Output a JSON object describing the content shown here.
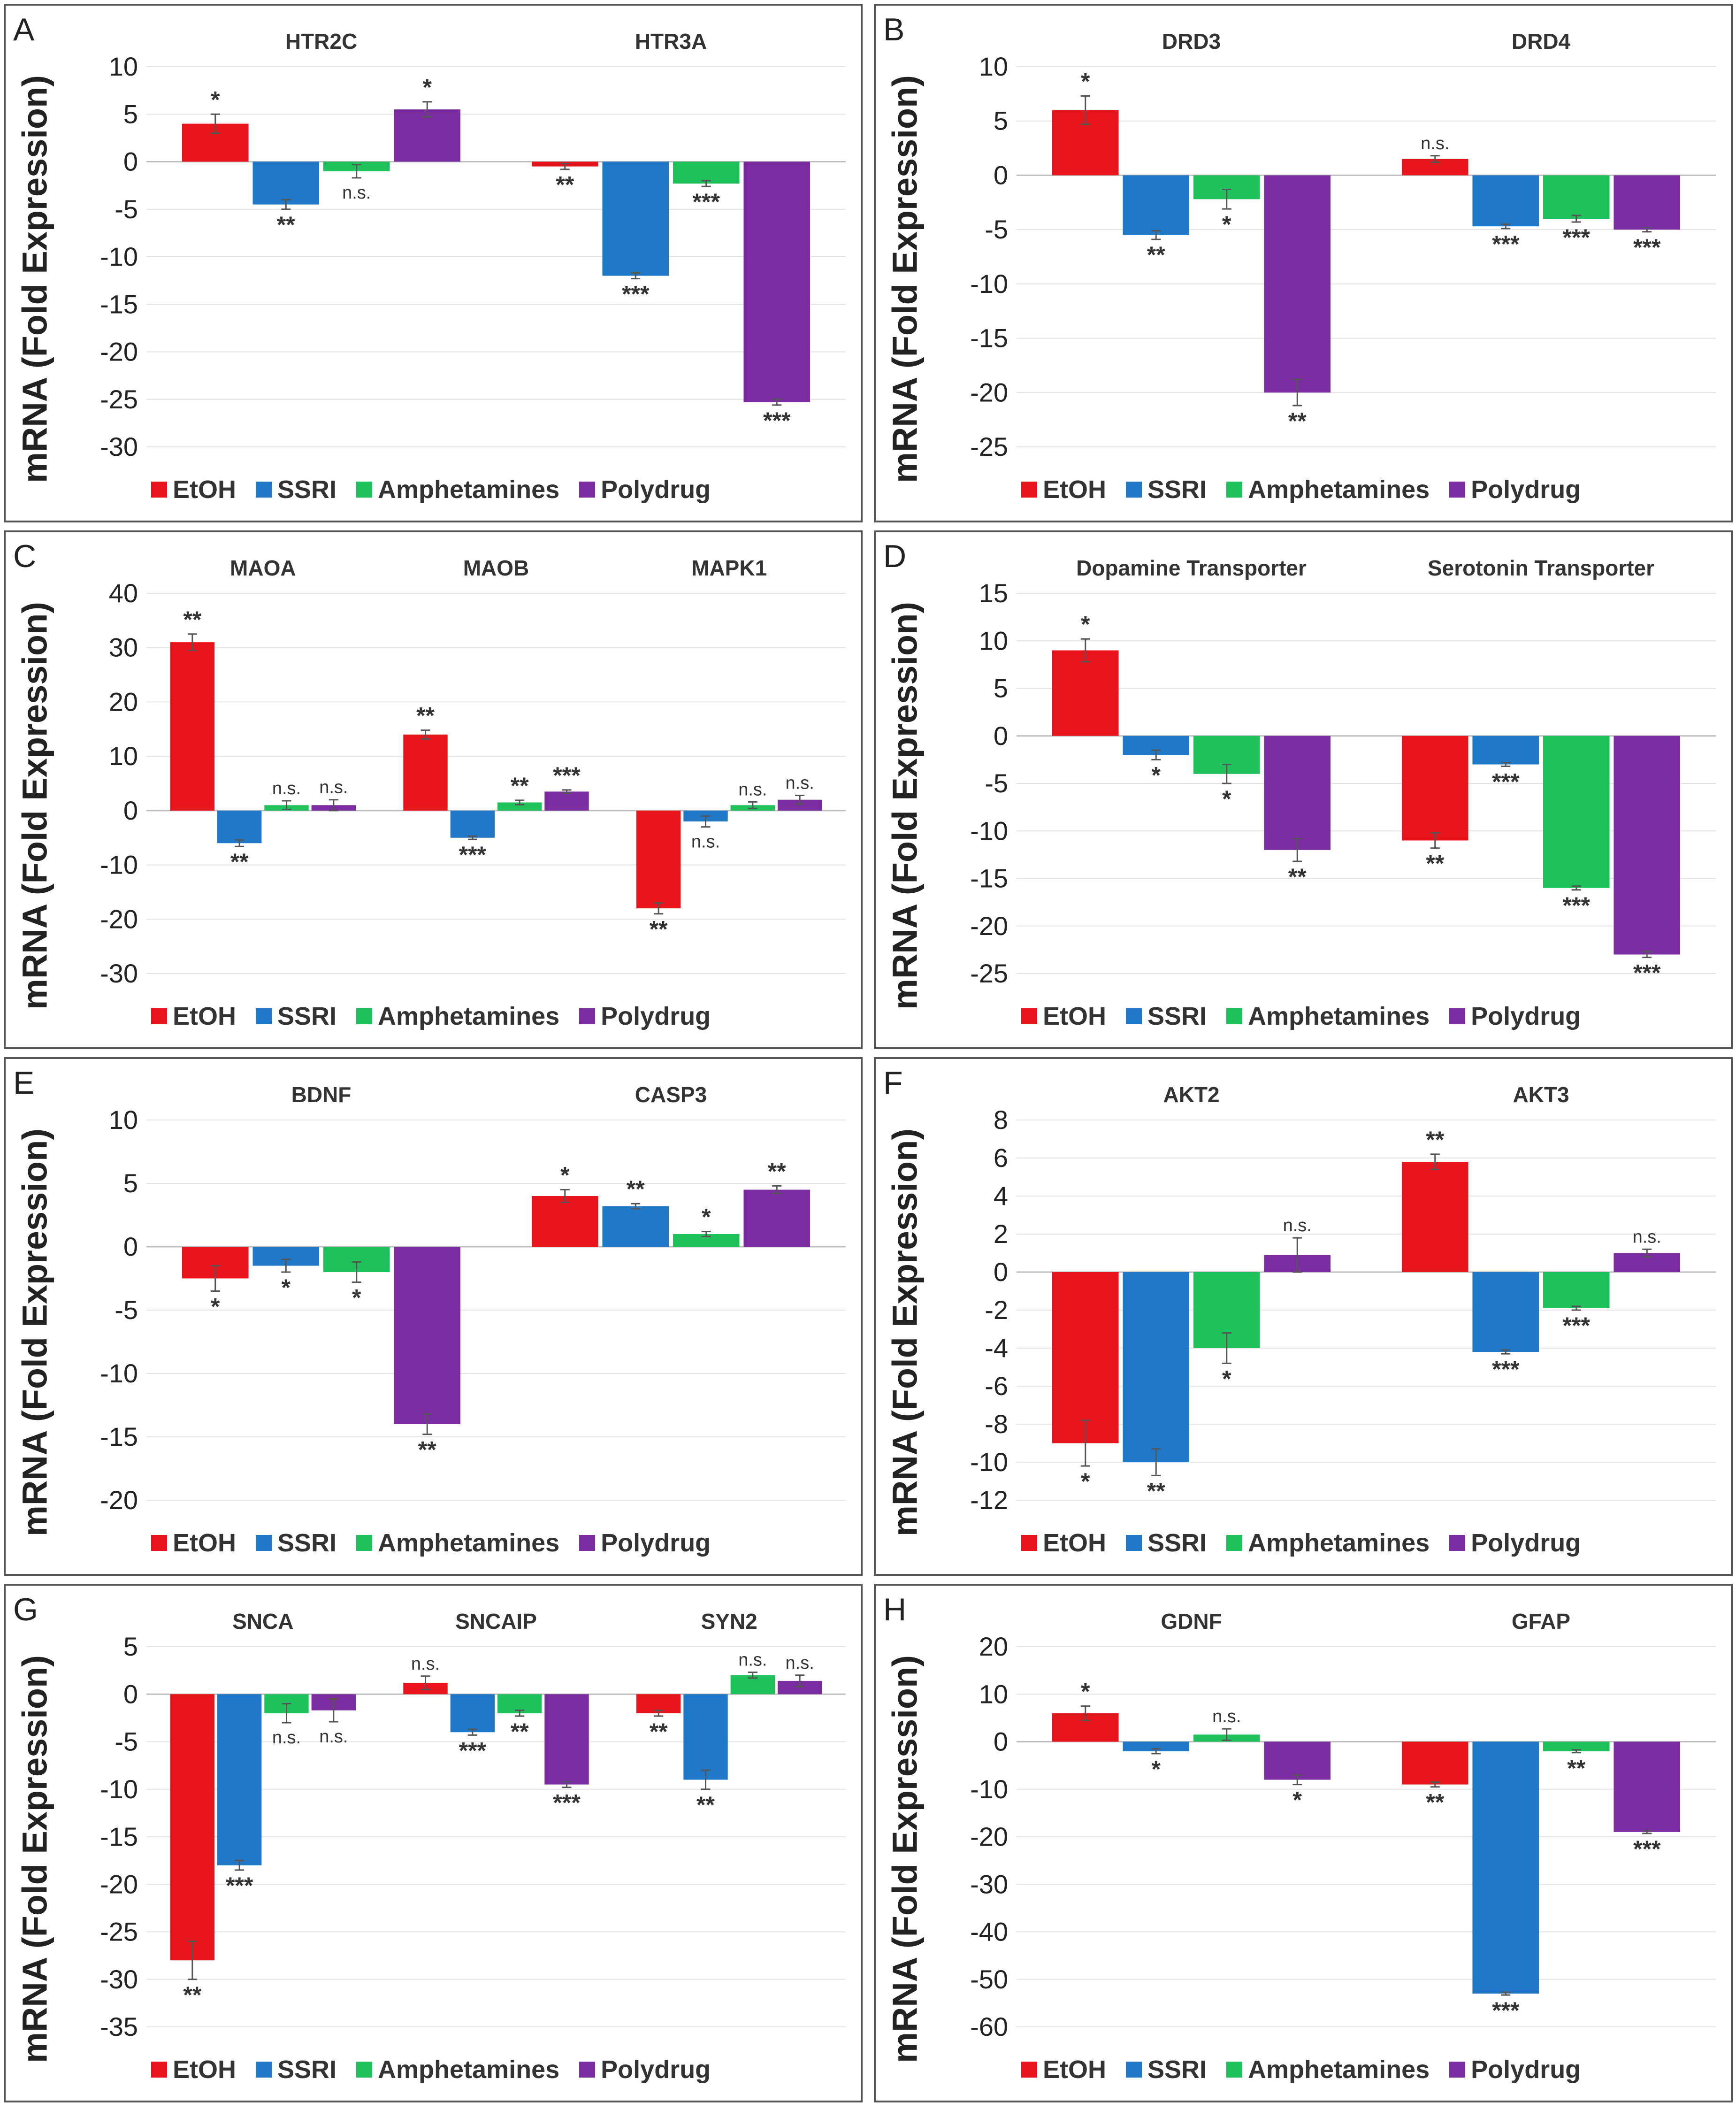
{
  "y_axis_label": "mRNA (Fold Expression)",
  "legend": [
    {
      "label": "EtOH",
      "color": "#e8141b"
    },
    {
      "label": "SSRI",
      "color": "#1f78c8"
    },
    {
      "label": "Amphetamines",
      "color": "#1fc15a"
    },
    {
      "label": "Polydrug",
      "color": "#7a2ca0"
    }
  ],
  "chart_data": [
    {
      "panel": "A",
      "type": "bar",
      "ylim": [
        -30,
        10
      ],
      "yticks": [
        10,
        5,
        0,
        -5,
        -10,
        -15,
        -20,
        -25,
        -30
      ],
      "categories": [
        "HTR2C",
        "HTR3A"
      ],
      "series": [
        {
          "name": "EtOH",
          "values": [
            4,
            -0.5
          ],
          "errors": [
            1,
            0.3
          ],
          "sig": [
            "*",
            "**"
          ]
        },
        {
          "name": "SSRI",
          "values": [
            -4.5,
            -12
          ],
          "errors": [
            0.5,
            0.3
          ],
          "sig": [
            "**",
            "***"
          ]
        },
        {
          "name": "Amphetamines",
          "values": [
            -1,
            -2.3
          ],
          "errors": [
            0.7,
            0.3
          ],
          "sig": [
            "n.s.",
            "***"
          ]
        },
        {
          "name": "Polydrug",
          "values": [
            5.5,
            -25.3
          ],
          "errors": [
            0.8,
            0.3
          ],
          "sig": [
            "*",
            "***"
          ]
        }
      ]
    },
    {
      "panel": "B",
      "type": "bar",
      "ylim": [
        -25,
        10
      ],
      "yticks": [
        10,
        5,
        0,
        -5,
        -10,
        -15,
        -20,
        -25
      ],
      "categories": [
        "DRD3",
        "DRD4"
      ],
      "series": [
        {
          "name": "EtOH",
          "values": [
            6,
            1.5
          ],
          "errors": [
            1.3,
            0.3
          ],
          "sig": [
            "*",
            "n.s."
          ]
        },
        {
          "name": "SSRI",
          "values": [
            -5.5,
            -4.7
          ],
          "errors": [
            0.4,
            0.2
          ],
          "sig": [
            "**",
            "***"
          ]
        },
        {
          "name": "Amphetamines",
          "values": [
            -2.2,
            -4
          ],
          "errors": [
            0.9,
            0.3
          ],
          "sig": [
            "*",
            "***"
          ]
        },
        {
          "name": "Polydrug",
          "values": [
            -20,
            -5
          ],
          "errors": [
            1.2,
            0.2
          ],
          "sig": [
            "**",
            "***"
          ]
        }
      ]
    },
    {
      "panel": "C",
      "type": "bar",
      "ylim": [
        -30,
        40
      ],
      "yticks": [
        40,
        30,
        20,
        10,
        0,
        -10,
        -20,
        -30
      ],
      "categories": [
        "MAOA",
        "MAOB",
        "MAPK1"
      ],
      "series": [
        {
          "name": "EtOH",
          "values": [
            31,
            14,
            -18
          ],
          "errors": [
            1.5,
            0.8,
            1
          ],
          "sig": [
            "**",
            "**",
            "**"
          ]
        },
        {
          "name": "SSRI",
          "values": [
            -6,
            -5,
            -2
          ],
          "errors": [
            0.6,
            0.3,
            1
          ],
          "sig": [
            "**",
            "***",
            "n.s."
          ]
        },
        {
          "name": "Amphetamines",
          "values": [
            1,
            1.5,
            1
          ],
          "errors": [
            0.8,
            0.4,
            0.6
          ],
          "sig": [
            "n.s.",
            "**",
            "n.s."
          ]
        },
        {
          "name": "Polydrug",
          "values": [
            1,
            3.5,
            2
          ],
          "errors": [
            1,
            0.3,
            0.8
          ],
          "sig": [
            "n.s.",
            "***",
            "n.s."
          ]
        }
      ]
    },
    {
      "panel": "D",
      "type": "bar",
      "ylim": [
        -25,
        15
      ],
      "yticks": [
        15,
        10,
        5,
        0,
        -5,
        -10,
        -15,
        -20,
        -25
      ],
      "categories": [
        "Dopamine Transporter",
        "Serotonin Transporter"
      ],
      "series": [
        {
          "name": "EtOH",
          "values": [
            9,
            -11
          ],
          "errors": [
            1.2,
            0.8
          ],
          "sig": [
            "*",
            "**"
          ]
        },
        {
          "name": "SSRI",
          "values": [
            -2,
            -3
          ],
          "errors": [
            0.5,
            0.2
          ],
          "sig": [
            "*",
            "***"
          ]
        },
        {
          "name": "Amphetamines",
          "values": [
            -4,
            -16
          ],
          "errors": [
            1,
            0.2
          ],
          "sig": [
            "*",
            "***"
          ]
        },
        {
          "name": "Polydrug",
          "values": [
            -12,
            -23
          ],
          "errors": [
            1.2,
            0.3
          ],
          "sig": [
            "**",
            "***"
          ]
        }
      ]
    },
    {
      "panel": "E",
      "type": "bar",
      "ylim": [
        -20,
        10
      ],
      "yticks": [
        10,
        5,
        0,
        -5,
        -10,
        -15,
        -20
      ],
      "categories": [
        "BDNF",
        "CASP3"
      ],
      "series": [
        {
          "name": "EtOH",
          "values": [
            -2.5,
            4
          ],
          "errors": [
            1,
            0.5
          ],
          "sig": [
            "*",
            "*"
          ]
        },
        {
          "name": "SSRI",
          "values": [
            -1.5,
            3.2
          ],
          "errors": [
            0.5,
            0.2
          ],
          "sig": [
            "*",
            "**"
          ]
        },
        {
          "name": "Amphetamines",
          "values": [
            -2,
            1
          ],
          "errors": [
            0.8,
            0.2
          ],
          "sig": [
            "*",
            "*"
          ]
        },
        {
          "name": "Polydrug",
          "values": [
            -14,
            4.5
          ],
          "errors": [
            0.8,
            0.3
          ],
          "sig": [
            "**",
            "**"
          ]
        }
      ]
    },
    {
      "panel": "F",
      "type": "bar",
      "ylim": [
        -12,
        8
      ],
      "yticks": [
        8,
        6,
        4,
        2,
        0,
        -2,
        -4,
        -6,
        -8,
        -10,
        -12
      ],
      "categories": [
        "AKT2",
        "AKT3"
      ],
      "series": [
        {
          "name": "EtOH",
          "values": [
            -9,
            5.8
          ],
          "errors": [
            1.2,
            0.4
          ],
          "sig": [
            "*",
            "**"
          ]
        },
        {
          "name": "SSRI",
          "values": [
            -10,
            -4.2
          ],
          "errors": [
            0.7,
            0.1
          ],
          "sig": [
            "**",
            "***"
          ]
        },
        {
          "name": "Amphetamines",
          "values": [
            -4,
            -1.9
          ],
          "errors": [
            0.8,
            0.1
          ],
          "sig": [
            "*",
            "***"
          ]
        },
        {
          "name": "Polydrug",
          "values": [
            0.9,
            1
          ],
          "errors": [
            0.9,
            0.2
          ],
          "sig": [
            "n.s.",
            "n.s."
          ]
        }
      ]
    },
    {
      "panel": "G",
      "type": "bar",
      "ylim": [
        -35,
        5
      ],
      "yticks": [
        5,
        0,
        -5,
        -10,
        -15,
        -20,
        -25,
        -30,
        -35
      ],
      "categories": [
        "SNCA",
        "SNCAIP",
        "SYN2"
      ],
      "series": [
        {
          "name": "EtOH",
          "values": [
            -28,
            1.2,
            -2
          ],
          "errors": [
            2,
            0.7,
            0.3
          ],
          "sig": [
            "**",
            "n.s.",
            "**"
          ]
        },
        {
          "name": "SSRI",
          "values": [
            -18,
            -4,
            -9
          ],
          "errors": [
            0.5,
            0.3,
            1
          ],
          "sig": [
            "***",
            "***",
            "**"
          ]
        },
        {
          "name": "Amphetamines",
          "values": [
            -2,
            -2,
            2
          ],
          "errors": [
            1,
            0.3,
            0.3
          ],
          "sig": [
            "n.s.",
            "**",
            "n.s."
          ]
        },
        {
          "name": "Polydrug",
          "values": [
            -1.7,
            -9.5,
            1.4
          ],
          "errors": [
            1.2,
            0.3,
            0.6
          ],
          "sig": [
            "n.s.",
            "***",
            "n.s."
          ]
        }
      ]
    },
    {
      "panel": "H",
      "type": "bar",
      "ylim": [
        -60,
        20
      ],
      "yticks": [
        20,
        10,
        0,
        -10,
        -20,
        -30,
        -40,
        -50,
        -60
      ],
      "categories": [
        "GDNF",
        "GFAP"
      ],
      "series": [
        {
          "name": "EtOH",
          "values": [
            6,
            -9
          ],
          "errors": [
            1.5,
            0.5
          ],
          "sig": [
            "*",
            "**"
          ]
        },
        {
          "name": "SSRI",
          "values": [
            -2,
            -53
          ],
          "errors": [
            0.5,
            0.3
          ],
          "sig": [
            "*",
            "***"
          ]
        },
        {
          "name": "Amphetamines",
          "values": [
            1.5,
            -2
          ],
          "errors": [
            1.2,
            0.3
          ],
          "sig": [
            "n.s.",
            "**"
          ]
        },
        {
          "name": "Polydrug",
          "values": [
            -8,
            -19
          ],
          "errors": [
            1,
            0.3
          ],
          "sig": [
            "*",
            "***"
          ]
        }
      ]
    }
  ]
}
